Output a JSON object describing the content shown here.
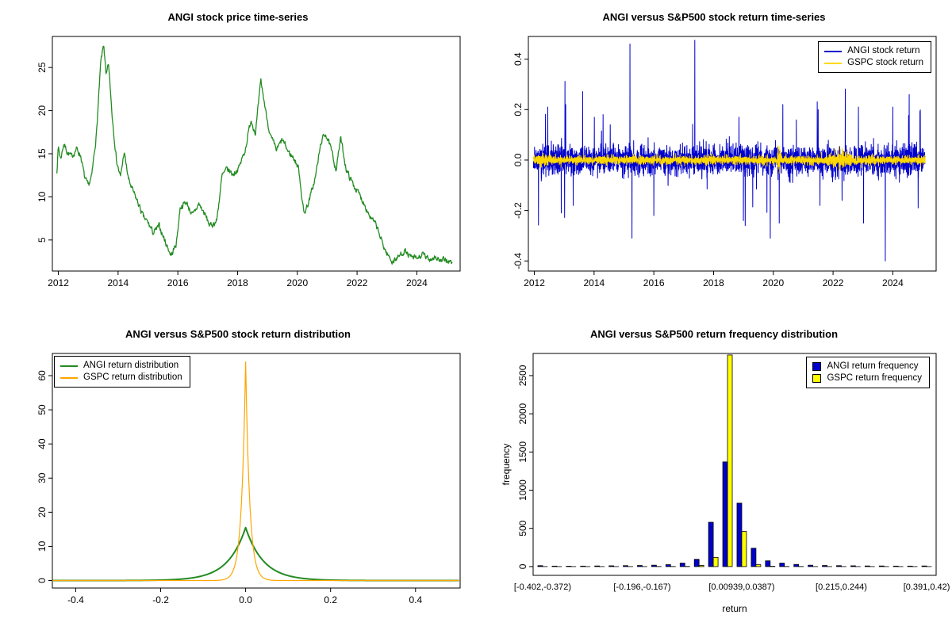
{
  "page": {
    "background": "#ffffff"
  },
  "chart_data": [
    {
      "id": "price",
      "type": "line",
      "title": "ANGI stock price time-series",
      "color": "#228B22",
      "xlim": [
        2011.8,
        2025.45
      ],
      "ylim": [
        1.4,
        28.6
      ],
      "x_ticks": [
        2012,
        2014,
        2016,
        2018,
        2020,
        2022,
        2024
      ],
      "x_tick_labels": [
        "2012",
        "2014",
        "2016",
        "2018",
        "2020",
        "2022",
        "2024"
      ],
      "y_ticks": [
        5,
        10,
        15,
        20,
        25
      ],
      "y_tick_labels": [
        "5",
        "10",
        "15",
        "20",
        "25"
      ],
      "seed": 7,
      "noise": 0.34,
      "n": 950,
      "anchors": [
        [
          2011.95,
          13.0
        ],
        [
          2012.0,
          15.8
        ],
        [
          2012.08,
          14.4
        ],
        [
          2012.18,
          16.2
        ],
        [
          2012.3,
          15.2
        ],
        [
          2012.45,
          14.6
        ],
        [
          2012.6,
          15.6
        ],
        [
          2012.75,
          14.8
        ],
        [
          2012.88,
          12.2
        ],
        [
          2013.0,
          11.2
        ],
        [
          2013.12,
          12.4
        ],
        [
          2013.28,
          17.5
        ],
        [
          2013.42,
          25.5
        ],
        [
          2013.52,
          27.8
        ],
        [
          2013.6,
          23.8
        ],
        [
          2013.68,
          25.4
        ],
        [
          2013.8,
          19.5
        ],
        [
          2013.95,
          14.2
        ],
        [
          2014.08,
          12.2
        ],
        [
          2014.2,
          15.2
        ],
        [
          2014.35,
          12.0
        ],
        [
          2014.5,
          10.6
        ],
        [
          2014.68,
          9.2
        ],
        [
          2014.85,
          7.6
        ],
        [
          2015.0,
          7.0
        ],
        [
          2015.18,
          5.8
        ],
        [
          2015.38,
          6.6
        ],
        [
          2015.58,
          4.8
        ],
        [
          2015.78,
          3.2
        ],
        [
          2015.95,
          4.6
        ],
        [
          2016.08,
          8.8
        ],
        [
          2016.28,
          9.4
        ],
        [
          2016.5,
          7.8
        ],
        [
          2016.7,
          9.2
        ],
        [
          2016.9,
          8.0
        ],
        [
          2017.08,
          6.6
        ],
        [
          2017.3,
          7.2
        ],
        [
          2017.48,
          12.4
        ],
        [
          2017.65,
          13.2
        ],
        [
          2017.85,
          12.6
        ],
        [
          2018.05,
          13.4
        ],
        [
          2018.25,
          15.4
        ],
        [
          2018.45,
          19.0
        ],
        [
          2018.6,
          17.4
        ],
        [
          2018.78,
          23.4
        ],
        [
          2018.95,
          19.8
        ],
        [
          2019.1,
          17.0
        ],
        [
          2019.3,
          15.4
        ],
        [
          2019.5,
          16.6
        ],
        [
          2019.7,
          15.2
        ],
        [
          2019.9,
          14.4
        ],
        [
          2020.05,
          13.2
        ],
        [
          2020.22,
          8.0
        ],
        [
          2020.4,
          9.6
        ],
        [
          2020.6,
          12.2
        ],
        [
          2020.8,
          16.4
        ],
        [
          2020.95,
          17.4
        ],
        [
          2021.1,
          15.8
        ],
        [
          2021.3,
          13.2
        ],
        [
          2021.45,
          16.8
        ],
        [
          2021.65,
          13.0
        ],
        [
          2021.85,
          11.6
        ],
        [
          2022.05,
          10.4
        ],
        [
          2022.25,
          9.2
        ],
        [
          2022.45,
          7.6
        ],
        [
          2022.65,
          6.6
        ],
        [
          2022.85,
          4.6
        ],
        [
          2023.0,
          3.4
        ],
        [
          2023.18,
          2.5
        ],
        [
          2023.38,
          3.0
        ],
        [
          2023.58,
          3.8
        ],
        [
          2023.78,
          3.0
        ],
        [
          2024.0,
          2.8
        ],
        [
          2024.2,
          3.3
        ],
        [
          2024.4,
          2.7
        ],
        [
          2024.6,
          3.1
        ],
        [
          2024.8,
          2.5
        ],
        [
          2025.0,
          2.7
        ],
        [
          2025.18,
          2.3
        ]
      ]
    },
    {
      "id": "returns",
      "type": "line",
      "title": "ANGI versus S&P500 stock return time-series",
      "xlim": [
        2011.8,
        2025.45
      ],
      "ylim": [
        -0.44,
        0.49
      ],
      "x_ticks": [
        2012,
        2014,
        2016,
        2018,
        2020,
        2022,
        2024
      ],
      "x_tick_labels": [
        "2012",
        "2014",
        "2016",
        "2018",
        "2020",
        "2022",
        "2024"
      ],
      "y_ticks": [
        -0.4,
        -0.2,
        0,
        0.2,
        0.4
      ],
      "y_tick_labels": [
        "-0.4",
        "-0.2",
        "0.0",
        "0.2",
        "0.4"
      ],
      "x_start": 2011.97,
      "x_end": 2025.08,
      "n": 3280,
      "legend": [
        {
          "label": "ANGI stock return",
          "color": "#0000CD"
        },
        {
          "label": "GSPC stock return",
          "color": "#FFD700"
        }
      ],
      "series": [
        {
          "name": "ANGI",
          "color": "#0000CD",
          "sigma": 0.028,
          "seed": 11,
          "spike_prob": 0.012,
          "spikes": [
            [
              2012.45,
              0.21
            ],
            [
              2012.9,
              -0.21
            ],
            [
              2013.05,
              0.22
            ],
            [
              2013.3,
              -0.18
            ],
            [
              2014.3,
              0.18
            ],
            [
              2015.2,
              0.46
            ],
            [
              2015.27,
              -0.31
            ],
            [
              2016.0,
              -0.22
            ],
            [
              2017.37,
              0.475
            ],
            [
              2018.85,
              0.17
            ],
            [
              2019.0,
              -0.24
            ],
            [
              2019.9,
              -0.31
            ],
            [
              2020.2,
              -0.25
            ],
            [
              2020.32,
              0.22
            ],
            [
              2021.5,
              0.2
            ],
            [
              2021.56,
              -0.18
            ],
            [
              2022.85,
              0.21
            ],
            [
              2023.02,
              -0.25
            ],
            [
              2023.75,
              -0.4
            ],
            [
              2024.0,
              0.21
            ],
            [
              2024.55,
              0.26
            ],
            [
              2024.85,
              -0.19
            ]
          ]
        },
        {
          "name": "GSPC",
          "color": "#FFD700",
          "sigma": 0.008,
          "seed": 12,
          "vol_clusters": [
            {
              "center": 2020.2,
              "width": 0.06,
              "mult": 3.4
            },
            {
              "center": 2022.3,
              "width": 0.35,
              "mult": 1.3
            },
            {
              "center": 2012.3,
              "width": 0.2,
              "mult": 0.5
            }
          ]
        }
      ]
    },
    {
      "id": "density",
      "type": "line",
      "title": "ANGI versus S&P500 stock return distribution",
      "xlim": [
        -0.455,
        0.505
      ],
      "ylim": [
        -2.2,
        66.5
      ],
      "x_ticks": [
        -0.4,
        -0.2,
        0,
        0.2,
        0.4
      ],
      "x_tick_labels": [
        "-0.4",
        "-0.2",
        "0.0",
        "0.2",
        "0.4"
      ],
      "y_ticks": [
        0,
        10,
        20,
        30,
        40,
        50,
        60
      ],
      "y_tick_labels": [
        "0",
        "10",
        "20",
        "30",
        "40",
        "50",
        "60"
      ],
      "legend": [
        {
          "label": "ANGI return distribution",
          "color": "#228B22"
        },
        {
          "label": "GSPC return distribution",
          "color": "#FFA500"
        }
      ],
      "curves": [
        {
          "name": "ANGI",
          "color": "#228B22",
          "peak": 15.5,
          "scale": 0.042,
          "line_width": 2
        },
        {
          "name": "GSPC",
          "color": "#FFA500",
          "peak": 64,
          "scale": 0.0095,
          "line_width": 1.2
        }
      ]
    },
    {
      "id": "histogram",
      "type": "bar",
      "title": "ANGI versus S&P500 return frequency distribution",
      "xlabel": "return",
      "ylabel": "frequency",
      "ylim": [
        -115,
        2790
      ],
      "y_ticks": [
        0,
        500,
        1000,
        1500,
        2000,
        2500
      ],
      "y_tick_labels": [
        "0",
        "500",
        "1000",
        "1500",
        "2000",
        "2500"
      ],
      "bins": 28,
      "tick_bins": [
        0,
        7,
        14,
        21,
        27
      ],
      "tick_labels": [
        "[-0.402,-0.372)",
        "[-0.196,-0.167)",
        "[0.00939,0.0387)",
        "[0.215,0.244)",
        "[0.391,0.42)"
      ],
      "legend": [
        {
          "label": "ANGI return frequency",
          "color": "#0000CD"
        },
        {
          "label": "GSPC return frequency",
          "color": "#FFFF00"
        }
      ],
      "series": [
        {
          "name": "ANGI",
          "color": "#0000CD",
          "values": [
            12,
            6,
            5,
            6,
            8,
            10,
            12,
            14,
            18,
            25,
            45,
            95,
            580,
            1370,
            830,
            240,
            75,
            45,
            28,
            18,
            14,
            12,
            10,
            8,
            8,
            6,
            6,
            8
          ]
        },
        {
          "name": "GSPC",
          "color": "#FFFF00",
          "values": [
            0,
            0,
            0,
            0,
            0,
            0,
            0,
            0,
            1,
            1,
            2,
            15,
            120,
            2770,
            460,
            25,
            4,
            1,
            1,
            0,
            0,
            0,
            0,
            0,
            0,
            0,
            0,
            0
          ]
        }
      ]
    }
  ]
}
